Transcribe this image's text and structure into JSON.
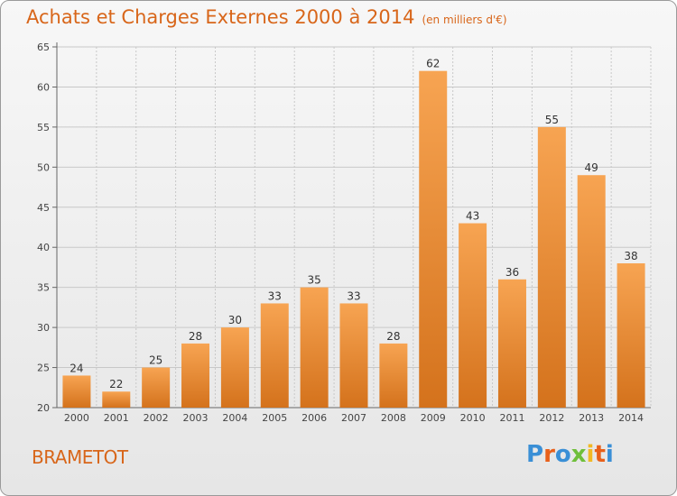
{
  "header": {
    "title": "Achats et Charges Externes 2000 à 2014",
    "subtitle": "(en milliers d'€)"
  },
  "footer": {
    "commune": "BRAMETOT",
    "logo_text": "Proxiti",
    "logo_colors": [
      "#3a8fd6",
      "#e8601a",
      "#3a8fd6",
      "#6fbf3a",
      "#f2b824",
      "#e8601a",
      "#3a8fd6"
    ]
  },
  "colors": {
    "accent": "#d8661a",
    "bar_light": "#f7a452",
    "bar_dark": "#d4721c",
    "grid": "#c8c8c8"
  },
  "chart_data": {
    "type": "bar",
    "categories": [
      "2000",
      "2001",
      "2002",
      "2003",
      "2004",
      "2005",
      "2006",
      "2007",
      "2008",
      "2009",
      "2010",
      "2011",
      "2012",
      "2013",
      "2014"
    ],
    "values": [
      24,
      22,
      25,
      28,
      30,
      33,
      35,
      33,
      28,
      62,
      43,
      36,
      55,
      49,
      38
    ],
    "title": "Achats et Charges Externes 2000 à 2014",
    "subtitle": "(en milliers d'€)",
    "xlabel": "",
    "ylabel": "",
    "ylim": [
      20,
      65
    ],
    "yticks": [
      20,
      25,
      30,
      35,
      40,
      45,
      50,
      55,
      60,
      65
    ],
    "grid": true,
    "legend": "none"
  }
}
